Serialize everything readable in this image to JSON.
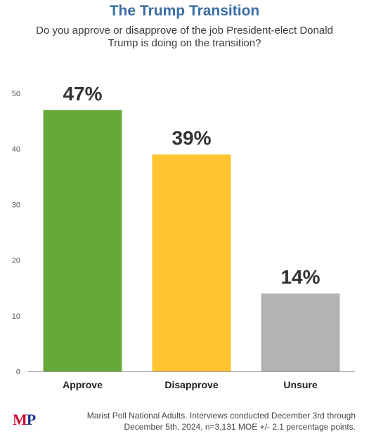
{
  "header": {
    "title": "The Trump Transition",
    "subtitle": "Do you approve or disapprove of the job President-elect Donald Trump is doing on the transition?"
  },
  "chart_data": {
    "type": "bar",
    "categories": [
      "Approve",
      "Disapprove",
      "Unsure"
    ],
    "values": [
      47,
      39,
      14
    ],
    "data_labels": [
      "47%",
      "39%",
      "14%"
    ],
    "colors": [
      "#66a939",
      "#ffc42e",
      "#b3b3b3"
    ],
    "yticks": [
      0,
      10,
      20,
      30,
      40,
      50
    ],
    "ylim": [
      0,
      50
    ],
    "xlabel": "",
    "ylabel": "",
    "grid": false
  },
  "footer": {
    "logo_m": "M",
    "logo_p": "P",
    "note_line1": "Marist Poll National Adults. Interviews conducted December 3rd through",
    "note_line2": "December 5th, 2024, n=3,131 MOE +/- 2.1 percentage points."
  }
}
